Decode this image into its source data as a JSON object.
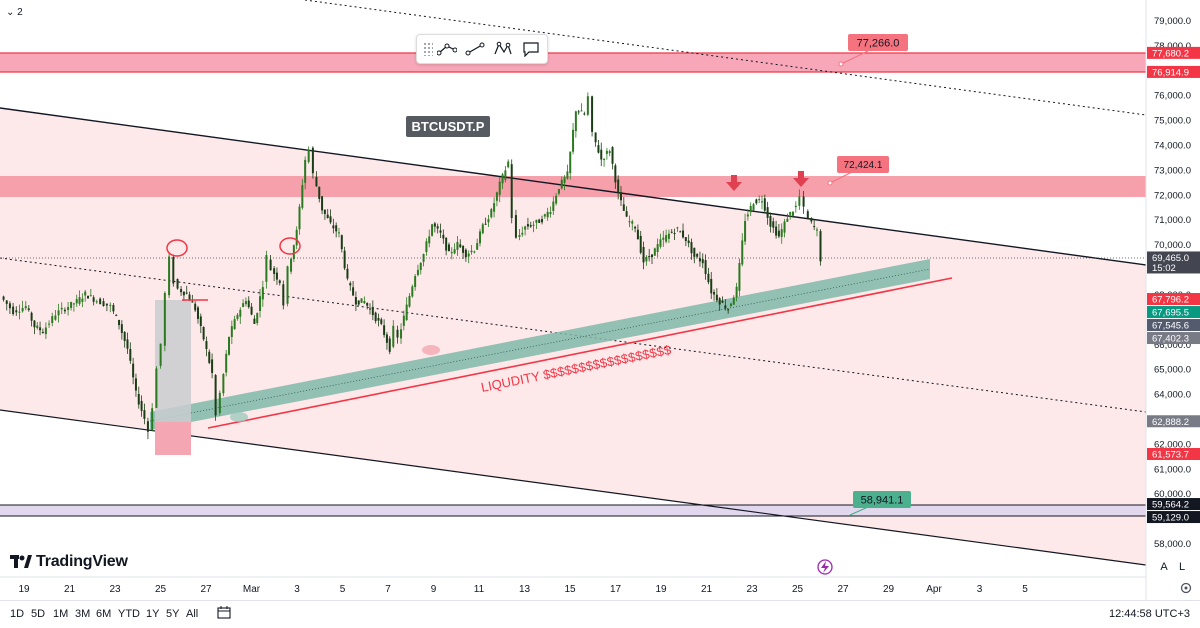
{
  "symbol": "BTCUSDT.P",
  "brand": "TradingView",
  "top_left": {
    "chevron_icon": "chevron-down-icon",
    "count": "2"
  },
  "toolbar": {
    "icons": [
      "grip-icon",
      "polyline-icon",
      "path-icon",
      "pattern-icon",
      "callout-icon"
    ]
  },
  "timeframes": [
    "1D",
    "5D",
    "1M",
    "3M",
    "6M",
    "YTD",
    "1Y",
    "5Y",
    "All"
  ],
  "clock": "12:44:58 UTC+3",
  "scale_buttons": [
    "A",
    "L"
  ],
  "annotation": "LIQUDITY $$$$$$$$$$$$$$$$$$",
  "colors": {
    "zone_pink": "#f48ea0",
    "zone_light": "#fde8ea",
    "green_band": "#7fb9a8",
    "red_line": "#f23645",
    "callout_red": "#f5737f",
    "callout_green": "#4caf8e",
    "purple_zone": "#d9d0ec",
    "candle": "#2b5f24"
  },
  "chart_data": {
    "type": "candlestick",
    "y_range": [
      57200,
      79800
    ],
    "y_ticks": [
      "79,000.0",
      "78,000.0",
      "76,000.0",
      "75,000.0",
      "74,000.0",
      "73,000.0",
      "72,000.0",
      "71,000.0",
      "70,000.0",
      "68,000.0",
      "66,000.0",
      "65,000.0",
      "64,000.0",
      "63,000.0",
      "62,000.0",
      "61,000.0",
      "60,000.0",
      "58,000.0"
    ],
    "x_labels": [
      "19",
      "21",
      "23",
      "25",
      "27",
      "Mar",
      "3",
      "5",
      "7",
      "9",
      "11",
      "13",
      "15",
      "17",
      "19",
      "21",
      "23",
      "25",
      "27",
      "29",
      "Apr",
      "3",
      "5"
    ],
    "price_path": [
      [
        0,
        67900
      ],
      [
        3,
        67300
      ],
      [
        6,
        67500
      ],
      [
        8,
        66700
      ],
      [
        10,
        66500
      ],
      [
        13,
        67200
      ],
      [
        16,
        67500
      ],
      [
        18,
        67700
      ],
      [
        20,
        68000
      ],
      [
        22,
        67800
      ],
      [
        26,
        67500
      ],
      [
        28,
        66800
      ],
      [
        30,
        65800
      ],
      [
        32,
        64000
      ],
      [
        34,
        63000
      ],
      [
        35,
        62500
      ],
      [
        36,
        63500
      ],
      [
        37,
        65000
      ],
      [
        38,
        66000
      ],
      [
        39,
        68000
      ],
      [
        40,
        69400
      ],
      [
        41,
        68500
      ],
      [
        42,
        68200
      ],
      [
        44,
        68000
      ],
      [
        46,
        67400
      ],
      [
        48,
        66200
      ],
      [
        50,
        64800
      ],
      [
        51,
        63100
      ],
      [
        52,
        64000
      ],
      [
        54,
        66300
      ],
      [
        56,
        67200
      ],
      [
        58,
        67800
      ],
      [
        60,
        66800
      ],
      [
        62,
        68400
      ],
      [
        63,
        69500
      ],
      [
        64,
        69000
      ],
      [
        66,
        68500
      ],
      [
        67,
        67600
      ],
      [
        68,
        69000
      ],
      [
        70,
        70500
      ],
      [
        72,
        73400
      ],
      [
        73,
        73800
      ],
      [
        74,
        72800
      ],
      [
        76,
        71400
      ],
      [
        78,
        70800
      ],
      [
        80,
        70400
      ],
      [
        82,
        68500
      ],
      [
        84,
        67700
      ],
      [
        86,
        67700
      ],
      [
        88,
        67200
      ],
      [
        90,
        66700
      ],
      [
        92,
        65800
      ],
      [
        93,
        66600
      ],
      [
        94,
        66200
      ],
      [
        96,
        67500
      ],
      [
        98,
        68800
      ],
      [
        100,
        69600
      ],
      [
        102,
        70800
      ],
      [
        104,
        70400
      ],
      [
        106,
        69600
      ],
      [
        108,
        70000
      ],
      [
        110,
        69600
      ],
      [
        112,
        69800
      ],
      [
        114,
        70700
      ],
      [
        116,
        71300
      ],
      [
        118,
        72400
      ],
      [
        120,
        73300
      ],
      [
        121,
        71100
      ],
      [
        122,
        70200
      ],
      [
        124,
        70700
      ],
      [
        126,
        70800
      ],
      [
        128,
        71000
      ],
      [
        130,
        71400
      ],
      [
        132,
        72300
      ],
      [
        134,
        72800
      ],
      [
        136,
        75400
      ],
      [
        138,
        75200
      ],
      [
        139,
        75900
      ],
      [
        140,
        74400
      ],
      [
        142,
        73400
      ],
      [
        144,
        73800
      ],
      [
        146,
        72000
      ],
      [
        148,
        71000
      ],
      [
        150,
        70700
      ],
      [
        152,
        69300
      ],
      [
        154,
        69600
      ],
      [
        156,
        70100
      ],
      [
        158,
        70400
      ],
      [
        160,
        70600
      ],
      [
        162,
        70200
      ],
      [
        164,
        69500
      ],
      [
        166,
        69300
      ],
      [
        168,
        68100
      ],
      [
        170,
        67700
      ],
      [
        172,
        67400
      ],
      [
        174,
        68200
      ],
      [
        176,
        71000
      ],
      [
        178,
        71700
      ],
      [
        180,
        71800
      ],
      [
        182,
        70800
      ],
      [
        184,
        70300
      ],
      [
        186,
        71100
      ],
      [
        188,
        71500
      ],
      [
        189,
        71900
      ],
      [
        190,
        71400
      ],
      [
        191,
        71000
      ],
      [
        193,
        70500
      ],
      [
        194,
        69400
      ]
    ],
    "price_levels": [
      {
        "label": "77,680.2",
        "color": "#f23645"
      },
      {
        "label": "76,914.9",
        "color": "#f23645"
      },
      {
        "label": "69,465.0",
        "sub": "15:02",
        "color": "#434651"
      },
      {
        "label": "67,796.2",
        "color": "#f23645"
      },
      {
        "label": "67,695.5",
        "color": "#089981"
      },
      {
        "label": "67,545.6",
        "color": "#555b6e"
      },
      {
        "label": "67,402.3",
        "color": "#787b86"
      },
      {
        "label": "62,888.2",
        "color": "#787b86"
      },
      {
        "label": "61,573.7",
        "color": "#f23645"
      },
      {
        "label": "59,564.2",
        "color": "#131722"
      },
      {
        "label": "59,129.0",
        "color": "#131722"
      }
    ],
    "callouts": [
      {
        "label": "77,266.0",
        "color": "#f5737f"
      },
      {
        "label": "72,424.1",
        "color": "#f5737f"
      },
      {
        "label": "58,941.1",
        "color": "#4caf8e"
      }
    ]
  }
}
